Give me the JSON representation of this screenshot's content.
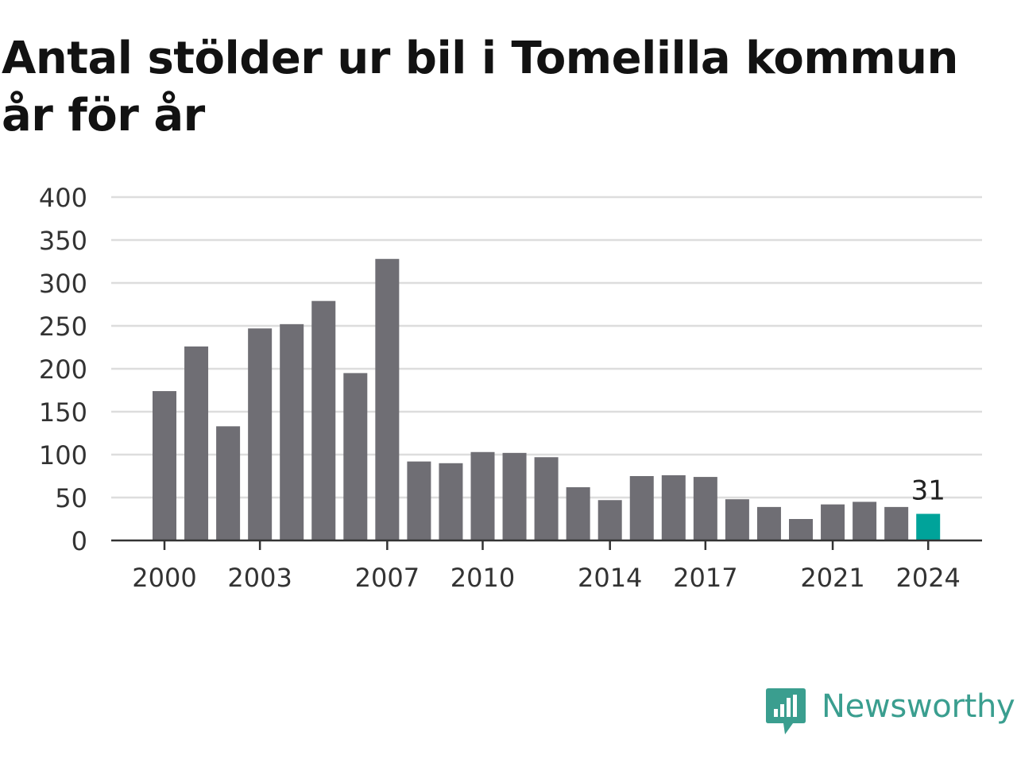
{
  "title": "Antal stölder ur bil i Tomelilla kommun år för år",
  "colors": {
    "bar": "#6f6e74",
    "highlight": "#00a39a",
    "grid": "#dddddd",
    "axis": "#333333",
    "text": "#333333",
    "brand": "#3a9e8f"
  },
  "chart_data": {
    "type": "bar",
    "title": "Antal stölder ur bil i Tomelilla kommun år för år",
    "xlabel": "",
    "ylabel": "",
    "categories": [
      2000,
      2001,
      2002,
      2003,
      2004,
      2005,
      2006,
      2007,
      2008,
      2009,
      2010,
      2011,
      2012,
      2013,
      2014,
      2015,
      2016,
      2017,
      2018,
      2019,
      2020,
      2021,
      2022,
      2023,
      2024
    ],
    "values": [
      174,
      226,
      133,
      247,
      252,
      279,
      195,
      328,
      92,
      90,
      103,
      102,
      97,
      62,
      47,
      75,
      76,
      74,
      48,
      39,
      25,
      42,
      45,
      39,
      31
    ],
    "ylim": [
      0,
      400
    ],
    "yticks": [
      0,
      50,
      100,
      150,
      200,
      250,
      300,
      350,
      400
    ],
    "xtick_labels": [
      2000,
      2003,
      2007,
      2010,
      2014,
      2017,
      2021,
      2024
    ],
    "highlight_category": 2024,
    "data_labels": [
      {
        "category": 2024,
        "text": "31"
      }
    ],
    "grid": true,
    "legend": "none"
  },
  "logo": {
    "text": "Newsworthy",
    "icon": "newsworthy-logo-icon"
  }
}
